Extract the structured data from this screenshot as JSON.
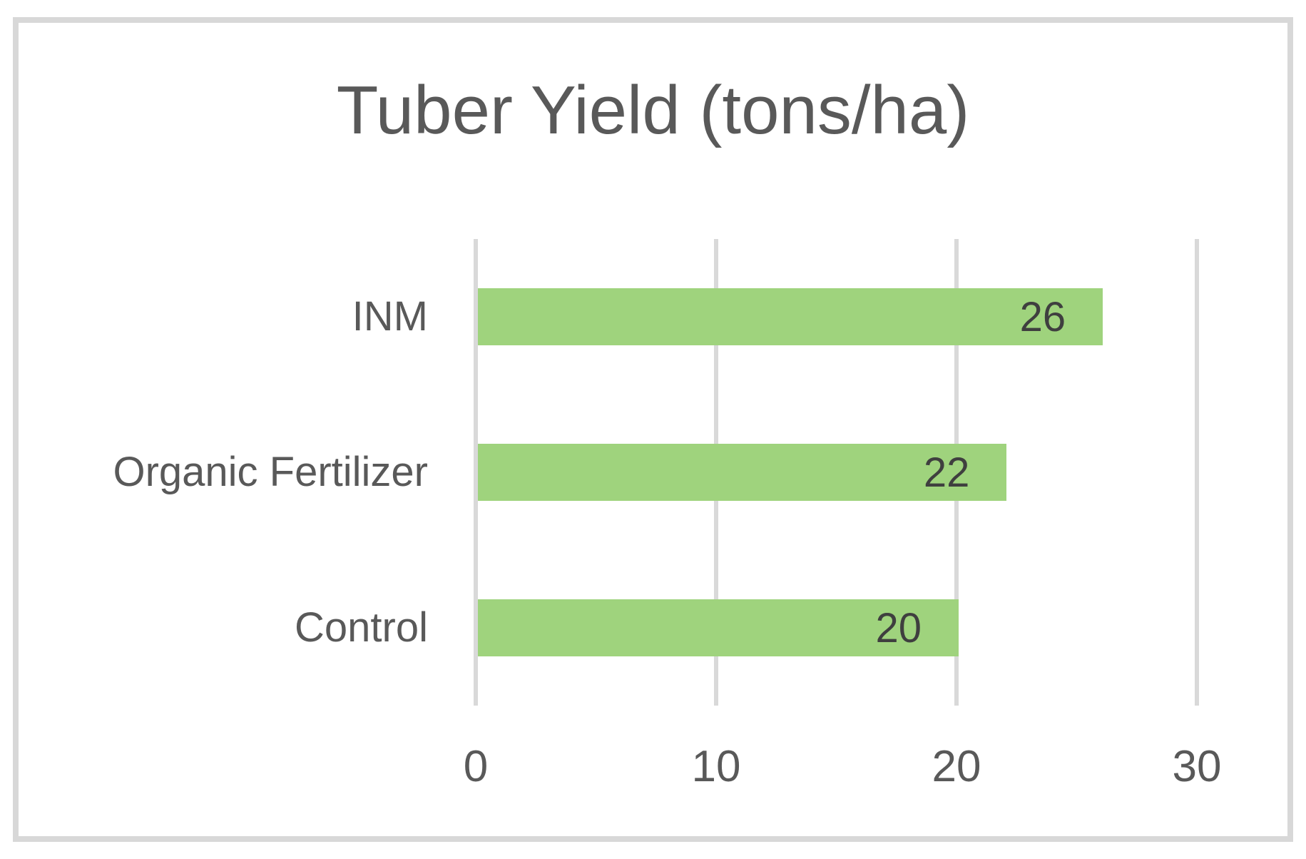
{
  "chart_data": {
    "type": "bar",
    "orientation": "horizontal",
    "title": "Tuber Yield (tons/ha)",
    "categories": [
      "INM",
      "Organic Fertilizer",
      "Control"
    ],
    "values": [
      26,
      22,
      20
    ],
    "value_labels": [
      "26",
      "22",
      "20"
    ],
    "xlabel": "",
    "ylabel": "",
    "xlim": [
      0,
      30
    ],
    "x_ticks": [
      "0",
      "10",
      "20",
      "30"
    ],
    "grid": "vertical-gridlines-on",
    "legend": "none",
    "data_label_position": "inside-end",
    "colors": {
      "bar": "#9FD37D",
      "gridline": "#D9D9D9",
      "frame_border": "#D8D8D8",
      "axis_text": "#595959",
      "value_text": "#3F3F3F",
      "background": "#FFFFFF"
    }
  }
}
